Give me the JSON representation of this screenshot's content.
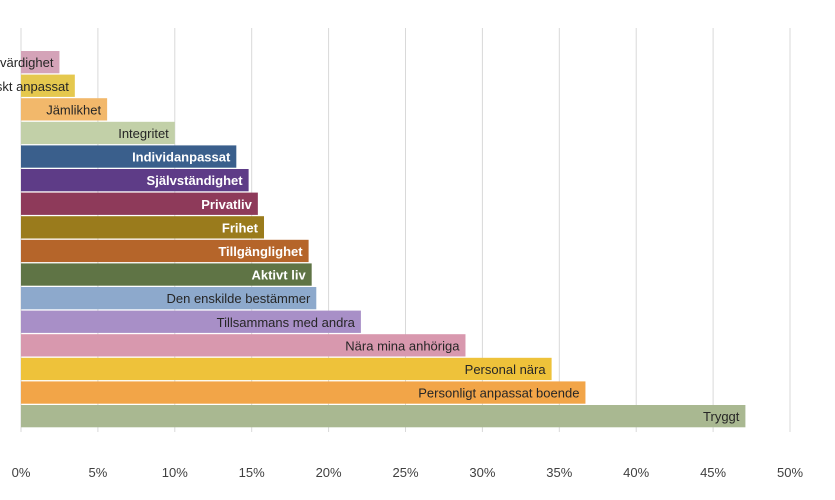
{
  "chart_data": {
    "type": "bar",
    "orientation": "horizontal",
    "title": "",
    "xlabel": "",
    "ylabel": "",
    "xlim": [
      0,
      50
    ],
    "x_ticks": [
      "0%",
      "5%",
      "10%",
      "15%",
      "20%",
      "25%",
      "30%",
      "35%",
      "40%",
      "45%",
      "50%"
    ],
    "x_tick_values": [
      0,
      5,
      10,
      15,
      20,
      25,
      30,
      35,
      40,
      45,
      50
    ],
    "grid": "vertical",
    "legend": "none",
    "label_position": "inside-end",
    "bars": [
      {
        "label": "Likvärdighet",
        "value": 2.5,
        "color": "#D4A3B8",
        "label_color": "#262626"
      },
      {
        "label": "Tekniskt anpassat",
        "value": 3.5,
        "color": "#E5C84E",
        "label_color": "#262626"
      },
      {
        "label": "Jämlikhet",
        "value": 5.6,
        "color": "#F2B86B",
        "label_color": "#262626"
      },
      {
        "label": "Integritet",
        "value": 10.0,
        "color": "#C2D0A8",
        "label_color": "#262626"
      },
      {
        "label": "Individanpassat",
        "value": 14.0,
        "color": "#3A5F8C",
        "label_color": "#ffffff"
      },
      {
        "label": "Självständighet",
        "value": 14.8,
        "color": "#5E3C87",
        "label_color": "#ffffff"
      },
      {
        "label": "Privatliv",
        "value": 15.4,
        "color": "#8E3A5A",
        "label_color": "#ffffff"
      },
      {
        "label": "Frihet",
        "value": 15.8,
        "color": "#9A7B1C",
        "label_color": "#ffffff"
      },
      {
        "label": "Tillgänglighet",
        "value": 18.7,
        "color": "#B5652A",
        "label_color": "#ffffff"
      },
      {
        "label": "Aktivt liv",
        "value": 18.9,
        "color": "#5F7445",
        "label_color": "#ffffff"
      },
      {
        "label": "Den enskilde bestämmer",
        "value": 19.2,
        "color": "#8DA9CC",
        "label_color": "#262626"
      },
      {
        "label": "Tillsammans med andra",
        "value": 22.1,
        "color": "#A88FC7",
        "label_color": "#262626"
      },
      {
        "label": "Nära mina anhöriga",
        "value": 28.9,
        "color": "#D898AE",
        "label_color": "#262626"
      },
      {
        "label": "Personal nära",
        "value": 34.5,
        "color": "#EEC23A",
        "label_color": "#262626"
      },
      {
        "label": "Personligt anpassat boende",
        "value": 36.7,
        "color": "#F2A548",
        "label_color": "#262626"
      },
      {
        "label": "Tryggt",
        "value": 47.1,
        "color": "#A9B891",
        "label_color": "#262626"
      }
    ]
  },
  "colors": {
    "gridline": "#D9D9D9",
    "axis_text": "#404040",
    "background": "#FFFFFF"
  }
}
